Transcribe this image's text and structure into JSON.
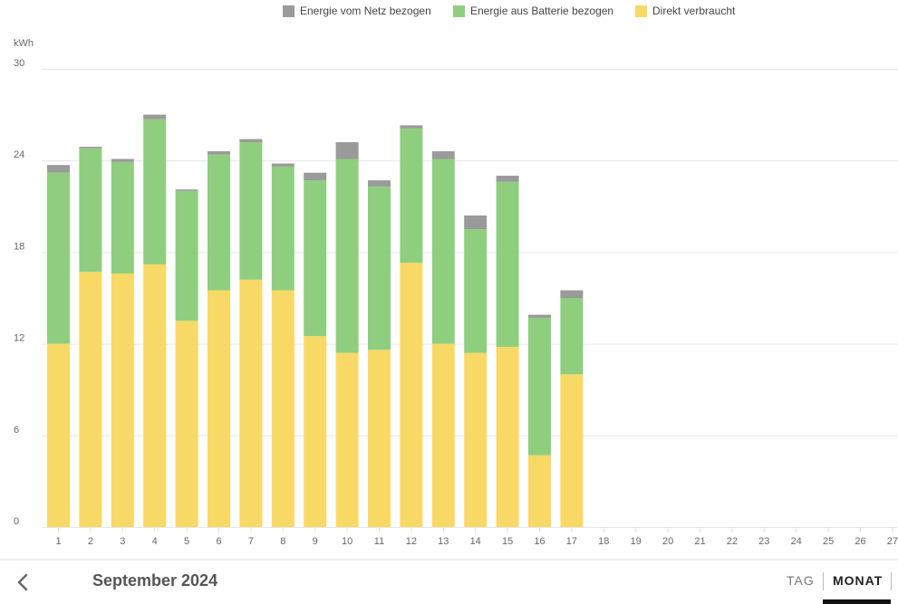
{
  "chart_data": {
    "type": "bar",
    "stacked": true,
    "title": "",
    "ylabel": "kWh",
    "xlabel": "",
    "ylim": [
      0,
      30
    ],
    "yticks": [
      0,
      6,
      12,
      18,
      24,
      30
    ],
    "grid": true,
    "legend_position": "top-center",
    "categories": [
      "1",
      "2",
      "3",
      "4",
      "5",
      "6",
      "7",
      "8",
      "9",
      "10",
      "11",
      "12",
      "13",
      "14",
      "15",
      "16",
      "17",
      "18",
      "19",
      "20",
      "21",
      "22",
      "23",
      "24",
      "25",
      "26",
      "27"
    ],
    "series": [
      {
        "name": "Direkt verbraucht",
        "color": "#f8d966",
        "values": [
          12.0,
          16.7,
          16.6,
          17.2,
          13.5,
          15.5,
          16.2,
          15.5,
          12.5,
          11.4,
          11.6,
          17.3,
          12.0,
          11.4,
          11.8,
          4.7,
          10.0,
          null,
          null,
          null,
          null,
          null,
          null,
          null,
          null,
          null,
          null
        ]
      },
      {
        "name": "Energie aus Batterie bezogen",
        "color": "#8fce7f",
        "values": [
          11.2,
          8.1,
          7.3,
          9.5,
          8.5,
          8.9,
          9.0,
          8.1,
          10.2,
          12.7,
          10.7,
          8.8,
          12.1,
          8.1,
          10.8,
          9.0,
          5.0,
          null,
          null,
          null,
          null,
          null,
          null,
          null,
          null,
          null,
          null
        ]
      },
      {
        "name": "Energie vom Netz bezogen",
        "color": "#9a9a9a",
        "values": [
          0.5,
          0.1,
          0.2,
          0.3,
          0.1,
          0.2,
          0.2,
          0.2,
          0.5,
          1.1,
          0.4,
          0.2,
          0.5,
          0.9,
          0.4,
          0.2,
          0.5,
          null,
          null,
          null,
          null,
          null,
          null,
          null,
          null,
          null,
          null
        ]
      }
    ]
  },
  "legend": [
    {
      "label": "Energie vom Netz bezogen",
      "color": "#9a9a9a"
    },
    {
      "label": "Energie aus Batterie bezogen",
      "color": "#8fce7f"
    },
    {
      "label": "Direkt verbraucht",
      "color": "#f8d966"
    }
  ],
  "footer": {
    "back_icon": "chevron-left-icon",
    "period_title": "September 2024",
    "tabs": [
      {
        "label": "TAG",
        "active": false
      },
      {
        "label": "MONAT",
        "active": true
      }
    ]
  }
}
